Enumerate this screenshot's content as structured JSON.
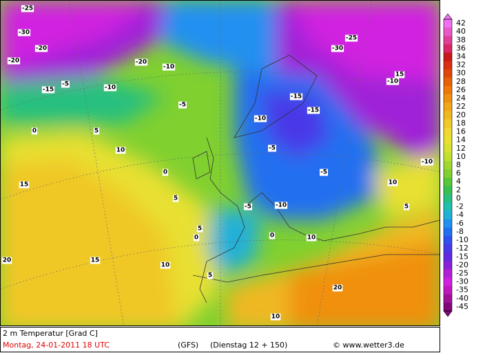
{
  "map": {
    "labels": [
      "-25",
      "-20",
      "-30",
      "-20",
      "-15",
      "-10",
      "-5",
      "0",
      "5",
      "10",
      "15",
      "-20",
      "-10",
      "-5",
      "0",
      "5",
      "10",
      "15",
      "20",
      "-15",
      "-10",
      "-5",
      "0",
      "5",
      "10",
      "-10",
      "-5",
      "0",
      "5",
      "10",
      "15",
      "-30",
      "-25",
      "-10",
      "-15",
      "10",
      "20",
      "-10",
      "-5",
      "5"
    ]
  },
  "legend": {
    "items": [
      {
        "label": "42",
        "color": "#f070f0"
      },
      {
        "label": "40",
        "color": "#e858c8"
      },
      {
        "label": "38",
        "color": "#e04098"
      },
      {
        "label": "36",
        "color": "#d82868"
      },
      {
        "label": "34",
        "color": "#c81818"
      },
      {
        "label": "32",
        "color": "#d83010"
      },
      {
        "label": "30",
        "color": "#e04808"
      },
      {
        "label": "28",
        "color": "#e86008"
      },
      {
        "label": "26",
        "color": "#f07808"
      },
      {
        "label": "24",
        "color": "#f09010"
      },
      {
        "label": "22",
        "color": "#f0a818"
      },
      {
        "label": "20",
        "color": "#f0b820"
      },
      {
        "label": "18",
        "color": "#f0c828"
      },
      {
        "label": "16",
        "color": "#f0d830"
      },
      {
        "label": "14",
        "color": "#e8e030"
      },
      {
        "label": "12",
        "color": "#d8e030"
      },
      {
        "label": "10",
        "color": "#c0e030"
      },
      {
        "label": "8",
        "color": "#a0d830"
      },
      {
        "label": "6",
        "color": "#80d030"
      },
      {
        "label": "4",
        "color": "#58c838"
      },
      {
        "label": "2",
        "color": "#38c050"
      },
      {
        "label": "0",
        "color": "#28c080"
      },
      {
        "label": "-2",
        "color": "#20c0b0"
      },
      {
        "label": "-4",
        "color": "#20b0d8"
      },
      {
        "label": "-6",
        "color": "#2090f0"
      },
      {
        "label": "-8",
        "color": "#2070f0"
      },
      {
        "label": "-10",
        "color": "#3050f0"
      },
      {
        "label": "-12",
        "color": "#4838e8"
      },
      {
        "label": "-15",
        "color": "#6028e0"
      },
      {
        "label": "-20",
        "color": "#8820d8"
      },
      {
        "label": "-25",
        "color": "#b020d8"
      },
      {
        "label": "-30",
        "color": "#d020e0"
      },
      {
        "label": "-35",
        "color": "#c018c0"
      },
      {
        "label": "-40",
        "color": "#a01098"
      },
      {
        "label": "-45",
        "color": "#800878"
      }
    ]
  },
  "footer": {
    "title": "2 m Temperatur [Grad C]",
    "date": "Montag, 24-01-2011  18 UTC",
    "model": "(GFS)",
    "run": "(Dienstag 12 + 150)",
    "credit": "© www.wetter3.de"
  }
}
